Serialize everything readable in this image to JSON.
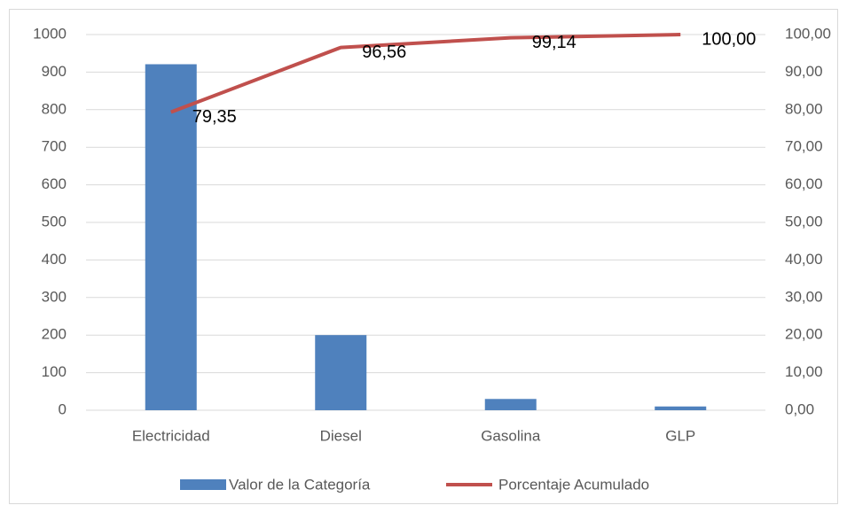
{
  "chart_data": {
    "type": "bar",
    "categories": [
      "Electricidad",
      "Diesel",
      "Gasolina",
      "GLP"
    ],
    "series": [
      {
        "name": "Valor de la Categoría",
        "type": "bar",
        "color": "#4f81bd",
        "axis": "y",
        "values": [
          921,
          200,
          30,
          10
        ]
      },
      {
        "name": "Porcentaje Acumulado",
        "type": "line",
        "color": "#c0504d",
        "axis": "y2",
        "values": [
          79.35,
          96.56,
          99.14,
          100.0
        ],
        "value_labels": [
          "79,35",
          "96,56",
          "99,14",
          "100,00"
        ]
      }
    ],
    "ylim": [
      0,
      1000
    ],
    "yticks": [
      0,
      100,
      200,
      300,
      400,
      500,
      600,
      700,
      800,
      900,
      1000
    ],
    "y2lim": [
      0,
      100
    ],
    "y2ticks": [
      {
        "value": 0,
        "label": "0,00"
      },
      {
        "value": 10,
        "label": "10,00"
      },
      {
        "value": 20,
        "label": "20,00"
      },
      {
        "value": 30,
        "label": "30,00"
      },
      {
        "value": 40,
        "label": "40,00"
      },
      {
        "value": 50,
        "label": "50,00"
      },
      {
        "value": 60,
        "label": "60,00"
      },
      {
        "value": 70,
        "label": "70,00"
      },
      {
        "value": 80,
        "label": "80,00"
      },
      {
        "value": 90,
        "label": "90,00"
      },
      {
        "value": 100,
        "label": "100,00"
      }
    ],
    "grid": true,
    "legend": "bottom"
  }
}
